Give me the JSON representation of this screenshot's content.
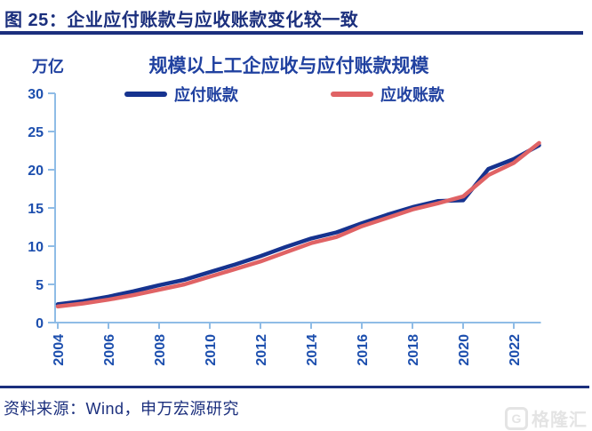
{
  "header": {
    "title": "图 25：企业应付账款与应收账款变化较一致"
  },
  "chart": {
    "unit": "万亿",
    "title": "规模以上工企应收与应付账款规模",
    "axis_color": "#8FBCE6",
    "tick_label_color": "#1D4FAE",
    "text_color": "#2041A0"
  },
  "chart_data": {
    "type": "line",
    "title": "规模以上工企应收与应付账款规模",
    "ylabel": "万亿",
    "xlabel": "",
    "x": [
      2004,
      2005,
      2006,
      2007,
      2008,
      2009,
      2010,
      2011,
      2012,
      2013,
      2014,
      2015,
      2016,
      2017,
      2018,
      2019,
      2020,
      2021,
      2022,
      2023
    ],
    "series": [
      {
        "name": "应付账款",
        "color": "#16338F",
        "values": [
          2.4,
          2.8,
          3.4,
          4.1,
          4.9,
          5.6,
          6.6,
          7.6,
          8.7,
          9.9,
          11.0,
          11.8,
          13.0,
          14.1,
          15.1,
          15.9,
          16.0,
          20.1,
          21.4,
          23.2
        ]
      },
      {
        "name": "应收账款",
        "color": "#E06365",
        "values": [
          2.1,
          2.5,
          3.0,
          3.6,
          4.3,
          5.0,
          6.0,
          7.0,
          8.0,
          9.2,
          10.4,
          11.2,
          12.6,
          13.7,
          14.8,
          15.6,
          16.5,
          19.3,
          20.9,
          23.5
        ]
      }
    ],
    "ylim": [
      0,
      30
    ],
    "yticks": [
      0,
      5,
      10,
      15,
      20,
      25,
      30
    ],
    "xticks": [
      2004,
      2006,
      2008,
      2010,
      2012,
      2014,
      2016,
      2018,
      2020,
      2022
    ],
    "grid": false,
    "legend_position": "top"
  },
  "footer": {
    "source": "资料来源：Wind，申万宏源研究",
    "watermark": "格隆汇",
    "watermark_logo": "G"
  }
}
